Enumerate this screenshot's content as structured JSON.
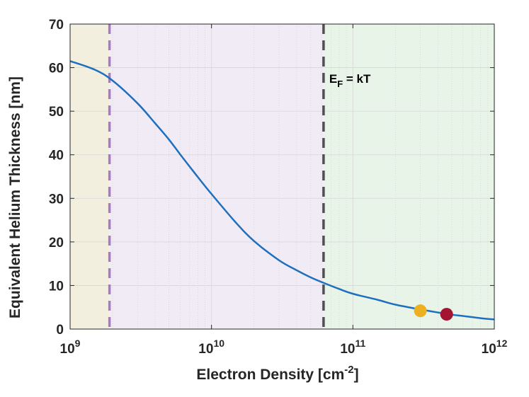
{
  "chart_data": {
    "type": "line",
    "xscale": "log",
    "xlim": [
      1000000000.0,
      1000000000000.0
    ],
    "ylim": [
      0,
      70
    ],
    "xlabel": {
      "main": "Electron Density [cm",
      "sup": "-2",
      "end": "]"
    },
    "ylabel": "Equivalent Helium Thickness [nm]",
    "grid": true,
    "x_ticks": [
      {
        "value": 1000000000.0,
        "base": "10",
        "exp": "9"
      },
      {
        "value": 10000000000.0,
        "base": "10",
        "exp": "10"
      },
      {
        "value": 100000000000.0,
        "base": "10",
        "exp": "11"
      },
      {
        "value": 1000000000000.0,
        "base": "10",
        "exp": "12"
      }
    ],
    "y_ticks": [
      0,
      10,
      20,
      30,
      40,
      50,
      60,
      70
    ],
    "regions": [
      {
        "x0": 1000000000.0,
        "x1": 1900000000.0,
        "color": "#f3efdf"
      },
      {
        "x0": 1900000000.0,
        "x1": 62000000000.0,
        "color": "#f1ebf5"
      },
      {
        "x0": 62000000000.0,
        "x1": 1000000000000.0,
        "color": "#e8f4e8"
      }
    ],
    "vlines": [
      {
        "x": 1900000000.0,
        "color": "#a97ac4"
      },
      {
        "x": 62000000000.0,
        "color": "#505050"
      }
    ],
    "annotation": {
      "text_main": "E",
      "text_sub": "F",
      "text_rest": " = kT",
      "x": 68000000000.0,
      "y": 56.5
    },
    "series": [
      {
        "color": "#1f6fbf",
        "x": [
          1000000000.0,
          1500000000.0,
          2000000000.0,
          3000000000.0,
          4000000000.0,
          5000000000.0,
          6000000000.0,
          7000000000.0,
          8000000000.0,
          10000000000.0,
          15000000000.0,
          20000000000.0,
          30000000000.0,
          40000000000.0,
          50000000000.0,
          60000000000.0,
          80000000000.0,
          100000000000.0,
          150000000000.0,
          200000000000.0,
          300000000000.0,
          400000000000.0,
          500000000000.0,
          600000000000.0,
          800000000000.0,
          1000000000000.0
        ],
        "y": [
          61.5,
          59.5,
          57.0,
          51.8,
          47.2,
          43.5,
          40.1,
          37.3,
          34.9,
          31.0,
          24.3,
          20.2,
          15.8,
          13.5,
          11.9,
          10.8,
          9.2,
          8.1,
          6.7,
          5.6,
          4.5,
          3.8,
          3.3,
          3.0,
          2.5,
          2.2
        ]
      }
    ],
    "markers": [
      {
        "x": 300000000000.0,
        "y": 4.2,
        "color": "#edb120"
      },
      {
        "x": 460000000000.0,
        "y": 3.4,
        "color": "#a2142f"
      }
    ]
  }
}
